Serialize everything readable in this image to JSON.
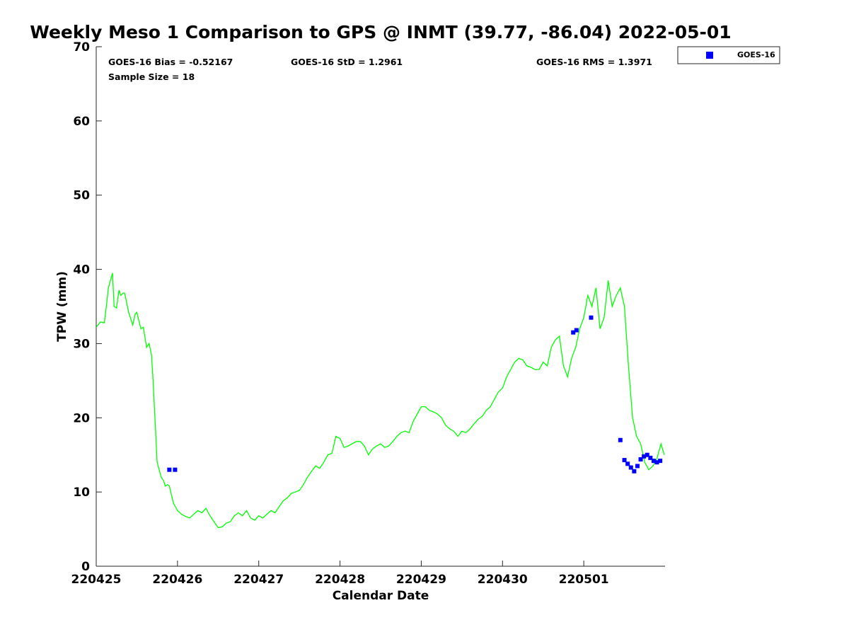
{
  "chart_data": {
    "type": "line",
    "title": "Weekly Meso 1 Comparison to GPS @ INMT (39.77, -86.04) 2022-05-01",
    "xlabel": "Calendar Date",
    "ylabel": "TPW (mm)",
    "xlim": [
      0,
      7.0
    ],
    "ylim": [
      0,
      70
    ],
    "x_ticks": [
      0,
      1,
      2,
      3,
      4,
      5,
      6
    ],
    "x_tick_labels": [
      "220425",
      "220426",
      "220427",
      "220428",
      "220429",
      "220430",
      "220501"
    ],
    "y_ticks": [
      0,
      10,
      20,
      30,
      40,
      50,
      60,
      70
    ],
    "y_tick_labels": [
      "0",
      "10",
      "20",
      "30",
      "40",
      "50",
      "60",
      "70"
    ],
    "grid": false,
    "legend_position": "top-right outside",
    "stats": {
      "bias": "GOES-16 Bias = -0.52167",
      "std": "GOES-16 StD = 1.2961",
      "rms": "GOES-16 RMS = 1.3971",
      "sample": "Sample Size = 18"
    },
    "gps_line": {
      "color": "#00ff00",
      "x": [
        0,
        0.05,
        0.1,
        0.13,
        0.15,
        0.2,
        0.22,
        0.25,
        0.28,
        0.3,
        0.33,
        0.35,
        0.4,
        0.45,
        0.48,
        0.5,
        0.55,
        0.58,
        0.62,
        0.65,
        0.68,
        0.7,
        0.75,
        0.8,
        0.83,
        0.85,
        0.88,
        0.9,
        0.95,
        1.0,
        1.05,
        1.1,
        1.15,
        1.2,
        1.25,
        1.3,
        1.35,
        1.4,
        1.45,
        1.5,
        1.55,
        1.6,
        1.65,
        1.7,
        1.75,
        1.8,
        1.85,
        1.9,
        1.95,
        2.0,
        2.05,
        2.1,
        2.15,
        2.2,
        2.25,
        2.3,
        2.35,
        2.4,
        2.45,
        2.5,
        2.55,
        2.6,
        2.65,
        2.7,
        2.75,
        2.8,
        2.85,
        2.9,
        2.95,
        3.0,
        3.05,
        3.1,
        3.15,
        3.2,
        3.25,
        3.3,
        3.35,
        3.4,
        3.45,
        3.5,
        3.55,
        3.6,
        3.65,
        3.7,
        3.75,
        3.8,
        3.85,
        3.9,
        3.95,
        4.0,
        4.05,
        4.1,
        4.15,
        4.2,
        4.25,
        4.3,
        4.35,
        4.4,
        4.45,
        4.5,
        4.55,
        4.6,
        4.65,
        4.7,
        4.75,
        4.8,
        4.85,
        4.9,
        4.95,
        5.0,
        5.05,
        5.1,
        5.15,
        5.2,
        5.25,
        5.3,
        5.35,
        5.4,
        5.45,
        5.5,
        5.55,
        5.6,
        5.65,
        5.7,
        5.75,
        5.8,
        5.85,
        5.9,
        5.95,
        6.0,
        6.05,
        6.1,
        6.15,
        6.2,
        6.25,
        6.3,
        6.35,
        6.4,
        6.45,
        6.5,
        6.55,
        6.6,
        6.65,
        6.7,
        6.75,
        6.8,
        6.85,
        6.9,
        6.95,
        6.99
      ],
      "y": [
        32.2,
        32.9,
        32.8,
        35.5,
        37.5,
        39.5,
        35.0,
        34.8,
        37.2,
        36.5,
        36.8,
        36.8,
        34.2,
        32.5,
        34.0,
        34.2,
        32.0,
        32.2,
        29.5,
        30.0,
        28.5,
        25.0,
        14.0,
        12.0,
        11.5,
        10.8,
        11.0,
        10.8,
        8.5,
        7.5,
        7.0,
        6.7,
        6.5,
        7.0,
        7.5,
        7.2,
        7.8,
        6.8,
        6.0,
        5.2,
        5.3,
        5.8,
        6.0,
        6.8,
        7.2,
        6.8,
        7.5,
        6.5,
        6.2,
        6.8,
        6.5,
        7.0,
        7.5,
        7.2,
        8.0,
        8.8,
        9.2,
        9.8,
        10.0,
        10.2,
        11.0,
        12.0,
        12.8,
        13.5,
        13.2,
        14.0,
        15.0,
        15.2,
        17.5,
        17.2,
        16.0,
        16.2,
        16.5,
        16.8,
        16.8,
        16.2,
        15.0,
        15.8,
        16.2,
        16.5,
        16.0,
        16.2,
        16.8,
        17.5,
        18.0,
        18.2,
        18.0,
        19.5,
        20.5,
        21.5,
        21.5,
        21.0,
        20.8,
        20.5,
        20.0,
        19.0,
        18.5,
        18.2,
        17.5,
        18.2,
        18.0,
        18.5,
        19.2,
        19.8,
        20.2,
        21.0,
        21.5,
        22.5,
        23.5,
        24.0,
        25.5,
        26.5,
        27.5,
        28.0,
        27.8,
        27.0,
        26.8,
        26.5,
        26.5,
        27.5,
        27.0,
        29.5,
        30.5,
        31.0,
        27.0,
        25.5,
        28.0,
        29.5,
        32.0,
        33.5,
        36.5,
        35.0,
        37.5,
        32.0,
        33.5,
        38.5,
        35.0,
        36.5,
        37.5,
        35.0,
        27.0,
        20.0,
        17.5,
        16.5,
        14.0,
        13.0,
        13.5,
        14.5,
        16.5,
        15.0
      ]
    },
    "series": [
      {
        "name": "GOES-16",
        "color": "#0000ff",
        "x": [
          0.9,
          0.97,
          5.87,
          5.91,
          6.09,
          6.45,
          6.5,
          6.54,
          6.58,
          6.62,
          6.66,
          6.7,
          6.74,
          6.78,
          6.82,
          6.86,
          6.9,
          6.94
        ],
        "y": [
          13.0,
          13.0,
          31.5,
          31.8,
          33.5,
          17.0,
          14.3,
          13.8,
          13.3,
          12.8,
          13.5,
          14.4,
          14.8,
          15.0,
          14.6,
          14.2,
          14.0,
          14.2
        ]
      }
    ]
  }
}
